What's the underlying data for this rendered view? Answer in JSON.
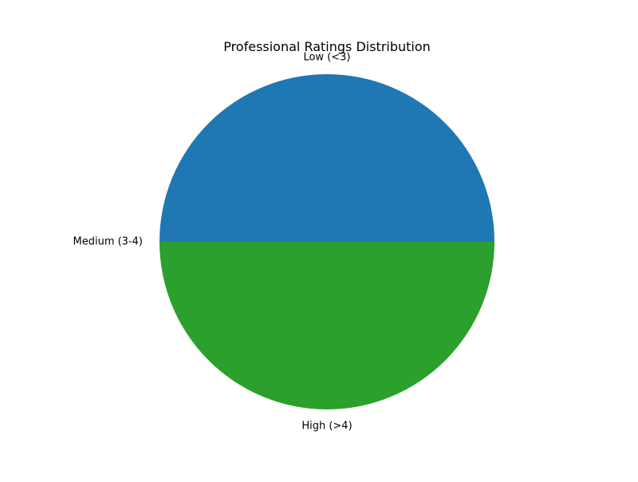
{
  "chart_data": {
    "type": "pie",
    "title": "Professional Ratings Distribution",
    "categories": [
      "Low (<3)",
      "Medium (3-4)",
      "High (>4)"
    ],
    "values": [
      50,
      0,
      50
    ],
    "colors": [
      "#1f77b4",
      "#ff7f0e",
      "#2ca02c"
    ],
    "start_angle_deg": 0,
    "direction": "counterclockwise",
    "legend": "none"
  }
}
